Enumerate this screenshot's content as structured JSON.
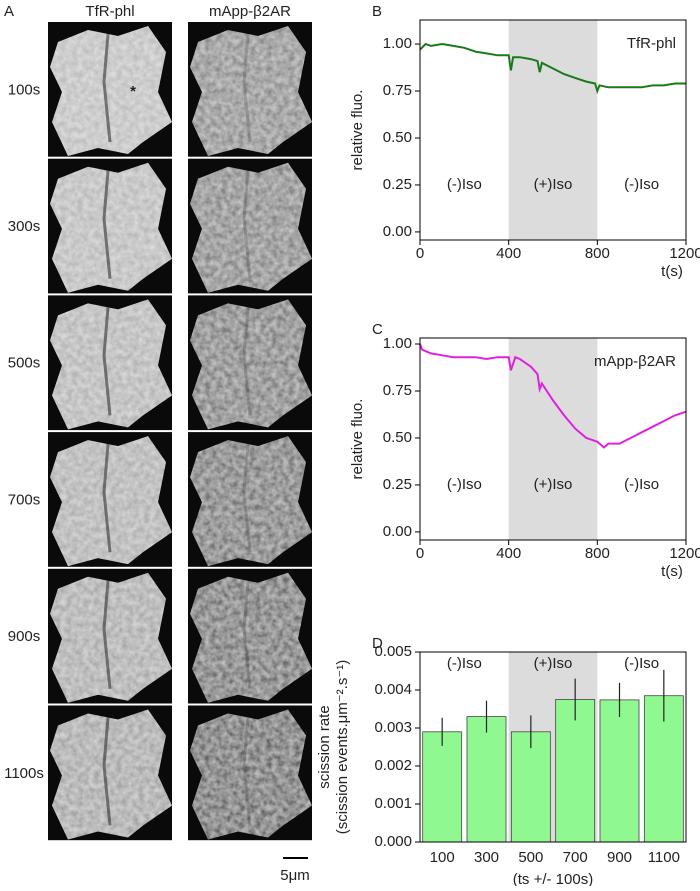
{
  "panel_a": {
    "letter": "A",
    "columns": [
      "TfR-phl",
      "mApp-β2AR"
    ],
    "rows": [
      "100s",
      "300s",
      "500s",
      "700s",
      "900s",
      "1100s"
    ],
    "marker": "*",
    "scale_bar": "5μm"
  },
  "chart_data": [
    {
      "type": "line",
      "letter": "B",
      "label": "TfR-phl",
      "ylabel": "relative fluo.",
      "xlabel": "t(s)",
      "color": "#1a7a1a",
      "shaded_x": [
        400,
        800
      ],
      "annotations": [
        "(-)Iso",
        "(+)Iso",
        "(-)Iso"
      ],
      "xlim": [
        0,
        1200
      ],
      "xticks": [
        0,
        400,
        800,
        1200
      ],
      "ylim": [
        -0.043,
        1.128
      ],
      "yticks": [
        {
          "value": 0,
          "label": "0.00"
        },
        {
          "value": 0.25,
          "label": "0.25"
        },
        {
          "value": 0.5,
          "label": "0.50"
        },
        {
          "value": 0.75,
          "label": "0.75"
        },
        {
          "value": 1,
          "label": "1.00"
        }
      ],
      "x": [
        0,
        25,
        50,
        100,
        150,
        200,
        250,
        300,
        350,
        400,
        410,
        420,
        450,
        500,
        530,
        540,
        550,
        600,
        650,
        700,
        750,
        790,
        800,
        810,
        850,
        900,
        950,
        1000,
        1050,
        1100,
        1150,
        1200
      ],
      "values": [
        0.97,
        1.0,
        0.99,
        1.0,
        0.99,
        0.98,
        0.96,
        0.95,
        0.94,
        0.94,
        0.86,
        0.93,
        0.93,
        0.92,
        0.91,
        0.85,
        0.9,
        0.87,
        0.84,
        0.82,
        0.8,
        0.79,
        0.75,
        0.78,
        0.77,
        0.77,
        0.77,
        0.77,
        0.78,
        0.78,
        0.79,
        0.79
      ]
    },
    {
      "type": "line",
      "letter": "C",
      "label": "mApp-β2AR",
      "ylabel": "relative fluo.",
      "xlabel": "t(s)",
      "color": "#e020e0",
      "shaded_x": [
        400,
        800
      ],
      "annotations": [
        "(-)Iso",
        "(+)Iso",
        "(-)Iso"
      ],
      "xlim": [
        0,
        1200
      ],
      "xticks": [
        0,
        400,
        800,
        1200
      ],
      "ylim": [
        -0.043,
        1.032
      ],
      "yticks": [
        {
          "value": 0,
          "label": "0.00"
        },
        {
          "value": 0.25,
          "label": "0.25"
        },
        {
          "value": 0.5,
          "label": "0.50"
        },
        {
          "value": 0.75,
          "label": "0.75"
        },
        {
          "value": 1,
          "label": "1.00"
        }
      ],
      "x": [
        0,
        10,
        50,
        100,
        150,
        200,
        250,
        300,
        350,
        400,
        410,
        430,
        450,
        500,
        530,
        540,
        550,
        600,
        650,
        700,
        750,
        800,
        830,
        850,
        900,
        950,
        1000,
        1050,
        1100,
        1150,
        1200
      ],
      "values": [
        1.0,
        0.97,
        0.95,
        0.94,
        0.93,
        0.93,
        0.93,
        0.92,
        0.93,
        0.93,
        0.86,
        0.93,
        0.92,
        0.88,
        0.84,
        0.76,
        0.79,
        0.7,
        0.62,
        0.55,
        0.5,
        0.48,
        0.45,
        0.47,
        0.47,
        0.5,
        0.53,
        0.56,
        0.59,
        0.62,
        0.64
      ]
    },
    {
      "type": "bar",
      "letter": "D",
      "ylabel": "scission rate",
      "ylabel2": "(scission events.μm⁻².s⁻¹)",
      "xlabel": "(ts +/- 100s)",
      "color": "#90f890",
      "shaded_categories": [
        "500",
        "700"
      ],
      "annotations": [
        "(-)Iso",
        "(+)Iso",
        "(-)Iso"
      ],
      "categories": [
        "100",
        "300",
        "500",
        "700",
        "900",
        "1100"
      ],
      "values": [
        0.0029,
        0.0033,
        0.0029,
        0.00375,
        0.00374,
        0.00385
      ],
      "errors": [
        0.00037,
        0.00042,
        0.00043,
        0.00055,
        0.00045,
        0.00068
      ],
      "ylim": [
        0,
        0.005
      ],
      "yticks": [
        {
          "value": 0,
          "label": "0.000"
        },
        0.001,
        0.002,
        0.003,
        0.004,
        0.005
      ]
    }
  ]
}
